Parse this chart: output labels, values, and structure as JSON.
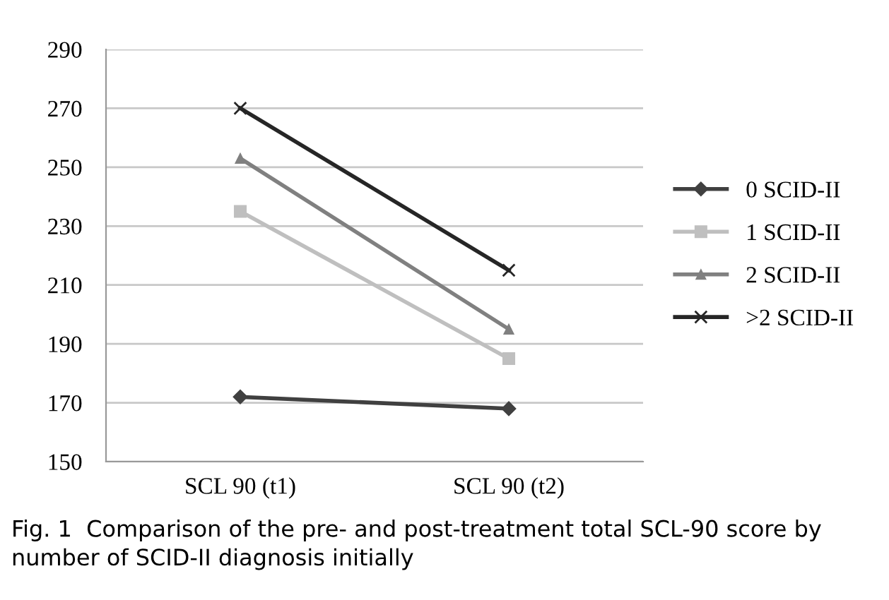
{
  "chart_data": {
    "type": "line",
    "categories": [
      "SCL 90 (t1)",
      "SCL 90 (t2)"
    ],
    "series": [
      {
        "name": "0 SCID-II",
        "color": "#404040",
        "marker": "diamond",
        "values": [
          172,
          168
        ]
      },
      {
        "name": "1 SCID-II",
        "color": "#bfbfbf",
        "marker": "square",
        "values": [
          235,
          185
        ]
      },
      {
        "name": "2 SCID-II",
        "color": "#808080",
        "marker": "triangle",
        "values": [
          253,
          195
        ]
      },
      {
        "name": ">2 SCID-II",
        "color": "#262626",
        "marker": "cross",
        "values": [
          270,
          215
        ]
      }
    ],
    "ylim": [
      150,
      290
    ],
    "yticks": [
      150,
      170,
      190,
      210,
      230,
      250,
      270,
      290
    ],
    "grid": "y",
    "legend": "right",
    "line_style": "solid",
    "annotations": [
      "Fig. 1  Comparison of the pre- and post-treatment total SCL-90 score by number of SCID-II diagnosis initially"
    ]
  }
}
